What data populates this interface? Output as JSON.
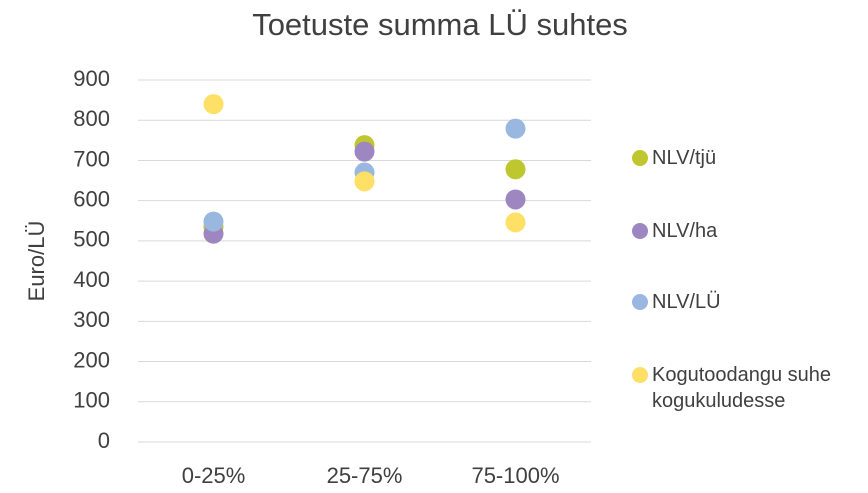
{
  "chart_data": {
    "type": "scatter",
    "title": "Toetuste summa LÜ suhtes",
    "y_label": "Euro/LÜ",
    "categories": [
      "0-25%",
      "25-75%",
      "75-100%"
    ],
    "series": [
      {
        "name": "NLV/tjü",
        "color": "#bfc72f",
        "values": [
          535,
          738,
          678
        ]
      },
      {
        "name": "NLV/ha",
        "color": "#9e86c0",
        "values": [
          518,
          722,
          603
        ]
      },
      {
        "name": "NLV/LÜ",
        "color": "#9ab7e0",
        "values": [
          548,
          670,
          779
        ]
      },
      {
        "name": "Kogutoodangu suhe kogukuludesse",
        "color": "#ffe066",
        "values": [
          840,
          648,
          546
        ]
      }
    ],
    "ylim": [
      0,
      900
    ],
    "yticks": [
      0,
      100,
      200,
      300,
      400,
      500,
      600,
      700,
      800,
      900
    ],
    "grid": true,
    "legend": "right"
  }
}
